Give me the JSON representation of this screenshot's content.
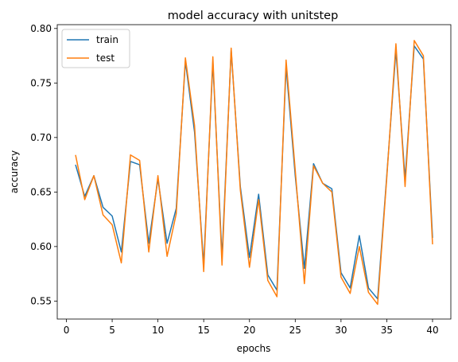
{
  "chart_data": {
    "type": "line",
    "title": "model accuracy with unitstep",
    "xlabel": "epochs",
    "ylabel": "accuracy",
    "xlim": [
      -1,
      42
    ],
    "ylim": [
      0.5335,
      0.8035
    ],
    "xticks": [
      0,
      5,
      10,
      15,
      20,
      25,
      30,
      35,
      40
    ],
    "yticks": [
      0.55,
      0.6,
      0.65,
      0.7,
      0.75,
      0.8
    ],
    "ytick_labels": [
      "0.55",
      "0.60",
      "0.65",
      "0.70",
      "0.75",
      "0.80"
    ],
    "grid": false,
    "legend_position": "top-left",
    "x": [
      1,
      2,
      3,
      4,
      5,
      6,
      7,
      8,
      9,
      10,
      11,
      12,
      13,
      14,
      15,
      16,
      17,
      18,
      19,
      20,
      21,
      22,
      23,
      24,
      25,
      26,
      27,
      28,
      29,
      30,
      31,
      32,
      33,
      34,
      35,
      36,
      37,
      38,
      39,
      40
    ],
    "series": [
      {
        "name": "train",
        "color": "#1f77b4",
        "values": [
          0.675,
          0.646,
          0.665,
          0.636,
          0.628,
          0.595,
          0.678,
          0.675,
          0.603,
          0.662,
          0.603,
          0.635,
          0.77,
          0.705,
          0.583,
          0.769,
          0.59,
          0.78,
          0.655,
          0.59,
          0.648,
          0.574,
          0.56,
          0.765,
          0.665,
          0.58,
          0.676,
          0.658,
          0.653,
          0.576,
          0.562,
          0.61,
          0.562,
          0.552,
          0.665,
          0.78,
          0.662,
          0.784,
          0.772,
          0.608
        ]
      },
      {
        "name": "test",
        "color": "#ff7f0e",
        "values": [
          0.684,
          0.643,
          0.665,
          0.629,
          0.62,
          0.585,
          0.684,
          0.679,
          0.595,
          0.665,
          0.591,
          0.63,
          0.773,
          0.711,
          0.577,
          0.774,
          0.583,
          0.782,
          0.652,
          0.581,
          0.643,
          0.569,
          0.554,
          0.771,
          0.67,
          0.566,
          0.674,
          0.658,
          0.65,
          0.572,
          0.557,
          0.6,
          0.558,
          0.547,
          0.663,
          0.786,
          0.655,
          0.789,
          0.775,
          0.602
        ]
      }
    ]
  }
}
